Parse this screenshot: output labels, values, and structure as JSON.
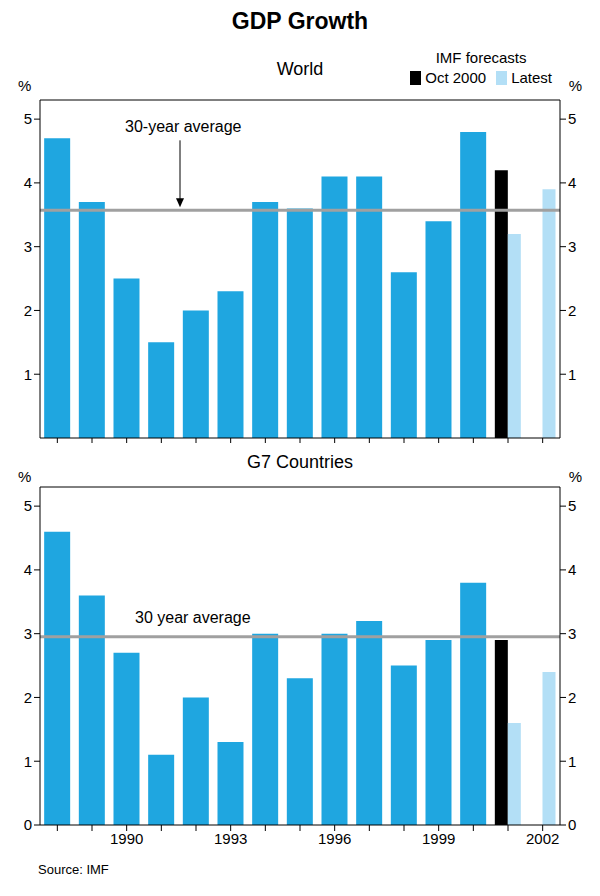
{
  "title": "GDP Growth",
  "source": "Source: IMF",
  "chart_data": [
    {
      "type": "bar",
      "title": "World",
      "y_label": "%",
      "categories": [
        null,
        null,
        null,
        null,
        null,
        null,
        null,
        null,
        null,
        null,
        null,
        null,
        null,
        null,
        null
      ],
      "series": [
        {
          "color": "#1fa6e0",
          "values": [
            4.7,
            3.7,
            2.5,
            1.5,
            2.0,
            2.3,
            3.7,
            3.6,
            4.1,
            4.1,
            2.6,
            3.4,
            4.8,
            null,
            null
          ]
        },
        {
          "name": "Oct 2000",
          "color": "#000000",
          "values": [
            null,
            null,
            null,
            null,
            null,
            null,
            null,
            null,
            null,
            null,
            null,
            null,
            null,
            4.2,
            null
          ]
        },
        {
          "name": "Latest",
          "color": "#b3dff6",
          "values": [
            null,
            null,
            null,
            null,
            null,
            null,
            null,
            null,
            null,
            null,
            null,
            null,
            null,
            3.2,
            3.9
          ]
        }
      ],
      "legend_title": "IMF forecasts",
      "legend": "top-right",
      "reference_lines": [
        {
          "value": 3.57,
          "label": "30-year average"
        }
      ],
      "ylim": [
        0,
        5.3
      ],
      "yticks": [
        1,
        2,
        3,
        4,
        5
      ],
      "grid": false
    },
    {
      "type": "bar",
      "title": "G7 Countries",
      "y_label": "%",
      "categories": [
        null,
        null,
        "1990",
        null,
        null,
        "1993",
        null,
        null,
        "1996",
        null,
        null,
        "1999",
        null,
        null,
        "2002"
      ],
      "series": [
        {
          "color": "#1fa6e0",
          "values": [
            4.6,
            3.6,
            2.7,
            1.1,
            2.0,
            1.3,
            3.0,
            2.3,
            3.0,
            3.2,
            2.5,
            2.9,
            3.8,
            null,
            null
          ]
        },
        {
          "name": "Oct 2000",
          "color": "#000000",
          "values": [
            null,
            null,
            null,
            null,
            null,
            null,
            null,
            null,
            null,
            null,
            null,
            null,
            null,
            2.9,
            null
          ]
        },
        {
          "name": "Latest",
          "color": "#b3dff6",
          "values": [
            null,
            null,
            null,
            null,
            null,
            null,
            null,
            null,
            null,
            null,
            null,
            null,
            null,
            1.6,
            2.4
          ]
        }
      ],
      "reference_lines": [
        {
          "value": 2.95,
          "label": "30 year average"
        }
      ],
      "ylim": [
        0,
        5.3
      ],
      "yticks": [
        0,
        1,
        2,
        3,
        4,
        5
      ],
      "grid": false
    }
  ]
}
